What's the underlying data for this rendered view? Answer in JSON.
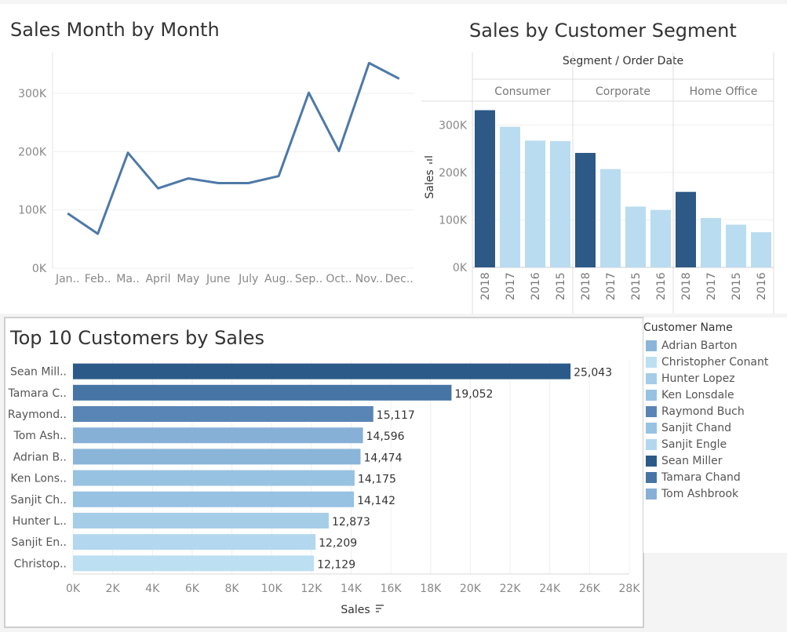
{
  "chart_data": [
    {
      "type": "line",
      "title": "Sales Month by Month",
      "x": [
        "Jan..",
        "Feb..",
        "Ma..",
        "April",
        "May",
        "June",
        "July",
        "Aug..",
        "Sep..",
        "Oct..",
        "Nov..",
        "Dec.."
      ],
      "series": [
        {
          "values": [
            94000,
            59000,
            198000,
            137000,
            154000,
            146000,
            146000,
            158000,
            301000,
            201000,
            352000,
            325000
          ]
        }
      ],
      "ylim": [
        0,
        370000
      ],
      "yticks": [
        0,
        100000,
        200000,
        300000
      ],
      "yticklabels": [
        "0K",
        "100K",
        "200K",
        "300K"
      ],
      "xlabel": "",
      "ylabel": "",
      "grid": true,
      "color": "#4e79a7"
    },
    {
      "type": "bar",
      "title": "Sales by Customer Segment",
      "header": "Segment / Order Date",
      "ylabel": "Sales",
      "ylim": [
        0,
        350000
      ],
      "yticks": [
        0,
        100000,
        200000,
        300000
      ],
      "yticklabels": [
        "0K",
        "100K",
        "200K",
        "300K"
      ],
      "groups": [
        {
          "name": "Consumer",
          "categories": [
            "2018",
            "2017",
            "2016",
            "2015"
          ],
          "values": [
            331000,
            296000,
            267000,
            266000
          ]
        },
        {
          "name": "Corporate",
          "categories": [
            "2018",
            "2017",
            "2015",
            "2016"
          ],
          "values": [
            241000,
            207000,
            128000,
            121000
          ]
        },
        {
          "name": "Home Office",
          "categories": [
            "2018",
            "2017",
            "2015",
            "2016"
          ],
          "values": [
            159000,
            104000,
            90000,
            74000
          ]
        }
      ],
      "colors": {
        "latest": "#2c5986",
        "other": "#b9dcf0"
      }
    },
    {
      "type": "bar",
      "orientation": "horizontal",
      "title": "Top 10 Customers by Sales",
      "categories": [
        "Sean Mill..",
        "Tamara C..",
        "Raymond..",
        "Tom Ash..",
        "Adrian B..",
        "Ken Lons..",
        "Sanjit Ch..",
        "Hunter L..",
        "Sanjit En..",
        "Christop.."
      ],
      "values": [
        25043,
        19052,
        15117,
        14596,
        14474,
        14175,
        14142,
        12873,
        12209,
        12129
      ],
      "value_labels": [
        "25,043",
        "19,052",
        "15,117",
        "14,596",
        "14,474",
        "14,175",
        "14,142",
        "12,873",
        "12,209",
        "12,129"
      ],
      "colors": [
        "#2b5a89",
        "#4675a5",
        "#5885b5",
        "#86b0d6",
        "#8ab5d9",
        "#98c2e2",
        "#98c2e2",
        "#a5cde8",
        "#b3d7ee",
        "#bcdff2"
      ],
      "xlim": [
        0,
        28000
      ],
      "xticks": [
        0,
        2000,
        4000,
        6000,
        8000,
        10000,
        12000,
        14000,
        16000,
        18000,
        20000,
        22000,
        24000,
        26000,
        28000
      ],
      "xticklabels": [
        "0K",
        "2K",
        "4K",
        "6K",
        "8K",
        "10K",
        "12K",
        "14K",
        "16K",
        "18K",
        "20K",
        "22K",
        "24K",
        "26K",
        "28K"
      ],
      "xlabel": "Sales",
      "ylabel": ""
    }
  ],
  "legend": {
    "title": "Customer Name",
    "items": [
      {
        "label": "Adrian Barton",
        "color": "#8ab5d9"
      },
      {
        "label": "Christopher Conant",
        "color": "#bcdff2"
      },
      {
        "label": "Hunter Lopez",
        "color": "#a5cde8"
      },
      {
        "label": "Ken Lonsdale",
        "color": "#98c2e2"
      },
      {
        "label": "Raymond Buch",
        "color": "#5885b5"
      },
      {
        "label": "Sanjit Chand",
        "color": "#98c2e2"
      },
      {
        "label": "Sanjit Engle",
        "color": "#b3d7ee"
      },
      {
        "label": "Sean Miller",
        "color": "#2b5a89"
      },
      {
        "label": "Tamara Chand",
        "color": "#4675a5"
      },
      {
        "label": "Tom Ashbrook",
        "color": "#86b0d6"
      }
    ]
  }
}
